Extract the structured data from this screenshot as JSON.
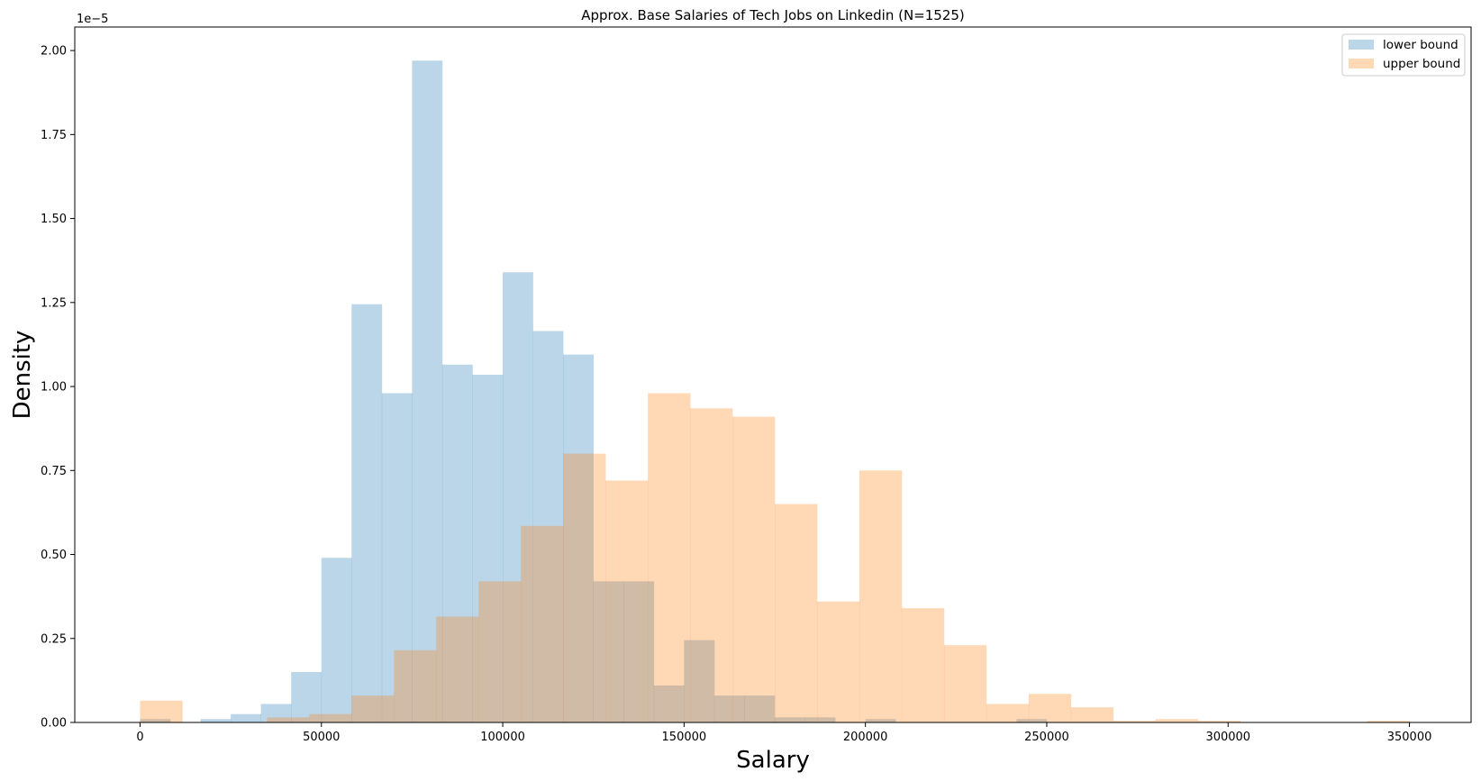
{
  "chart_data": {
    "type": "histogram",
    "title": "Approx. Base Salaries of Tech Jobs on Linkedin (N=1525)",
    "xlabel": "Salary",
    "ylabel": "Density",
    "y_offset_label": "1e−5",
    "xlim": [
      -18000,
      367000
    ],
    "ylim": [
      0,
      2.07
    ],
    "y_unit_multiplier": 1e-05,
    "x_ticks": [
      0,
      50000,
      100000,
      150000,
      200000,
      250000,
      300000,
      350000
    ],
    "x_tick_labels": [
      "0",
      "50000",
      "100000",
      "150000",
      "200000",
      "250000",
      "300000",
      "350000"
    ],
    "y_ticks": [
      0,
      0.25,
      0.5,
      0.75,
      1.0,
      1.25,
      1.5,
      1.75,
      2.0
    ],
    "y_tick_labels": [
      "0.00",
      "0.25",
      "0.50",
      "0.75",
      "1.00",
      "1.25",
      "1.50",
      "1.75",
      "2.00"
    ],
    "legend_position": "upper right",
    "grid": false,
    "series": [
      {
        "name": "lower bound",
        "color": "#1f77b4",
        "alpha": 0.3,
        "bin_start": 0,
        "bin_width": 8333,
        "values": [
          0.01,
          0.0,
          0.01,
          0.025,
          0.055,
          0.15,
          0.49,
          1.245,
          0.98,
          1.97,
          1.065,
          1.035,
          1.34,
          1.165,
          1.095,
          0.42,
          0.42,
          0.11,
          0.245,
          0.08,
          0.08,
          0.015,
          0.015,
          0.0,
          0.01,
          0.0,
          0.0,
          0.0,
          0.0,
          0.01
        ]
      },
      {
        "name": "upper bound",
        "color": "#ff7f0e",
        "alpha": 0.3,
        "bin_start": 0,
        "bin_width": 11667,
        "values": [
          0.065,
          0.0,
          0.0,
          0.015,
          0.025,
          0.08,
          0.215,
          0.315,
          0.42,
          0.585,
          0.8,
          0.72,
          0.98,
          0.935,
          0.91,
          0.65,
          0.36,
          0.75,
          0.34,
          0.23,
          0.055,
          0.085,
          0.045,
          0.005,
          0.01,
          0.005,
          0.0,
          0.0,
          0.0,
          0.005
        ]
      }
    ]
  }
}
